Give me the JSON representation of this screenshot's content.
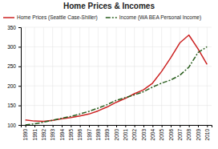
{
  "chart_data": {
    "type": "line",
    "title": "Home Prices & Incomes",
    "x": [
      1990,
      1991,
      1992,
      1993,
      1994,
      1995,
      1996,
      1997,
      1998,
      1999,
      2000,
      2001,
      2002,
      2003,
      2004,
      2005,
      2006,
      2007,
      2008,
      2009,
      2010
    ],
    "series": [
      {
        "name": "Home Prices (Seattle Case-Shiller)",
        "color": "#cc2222",
        "line_style": "solid",
        "values": [
          113,
          110,
          109,
          112,
          116,
          119,
          123,
          128,
          136,
          146,
          158,
          168,
          180,
          190,
          207,
          237,
          272,
          310,
          330,
          295,
          255
        ]
      },
      {
        "name": "Income (WA BEA Personal Income)",
        "color": "#2a5e1e",
        "line_style": "dashdot",
        "values": [
          100,
          103,
          107,
          112,
          117,
          122,
          128,
          135,
          143,
          152,
          163,
          170,
          177,
          185,
          197,
          207,
          215,
          227,
          248,
          285,
          300
        ]
      }
    ],
    "xlim": [
      1989.5,
      2010.5
    ],
    "xticks": [
      1990,
      1991,
      1992,
      1993,
      1994,
      1995,
      1996,
      1997,
      1998,
      1999,
      2000,
      2001,
      2002,
      2003,
      2004,
      2005,
      2006,
      2007,
      2008,
      2009,
      2010
    ],
    "ylim": [
      100,
      350
    ],
    "yticks": [
      100,
      150,
      200,
      250,
      300,
      350
    ],
    "grid": true,
    "legend": "top"
  }
}
